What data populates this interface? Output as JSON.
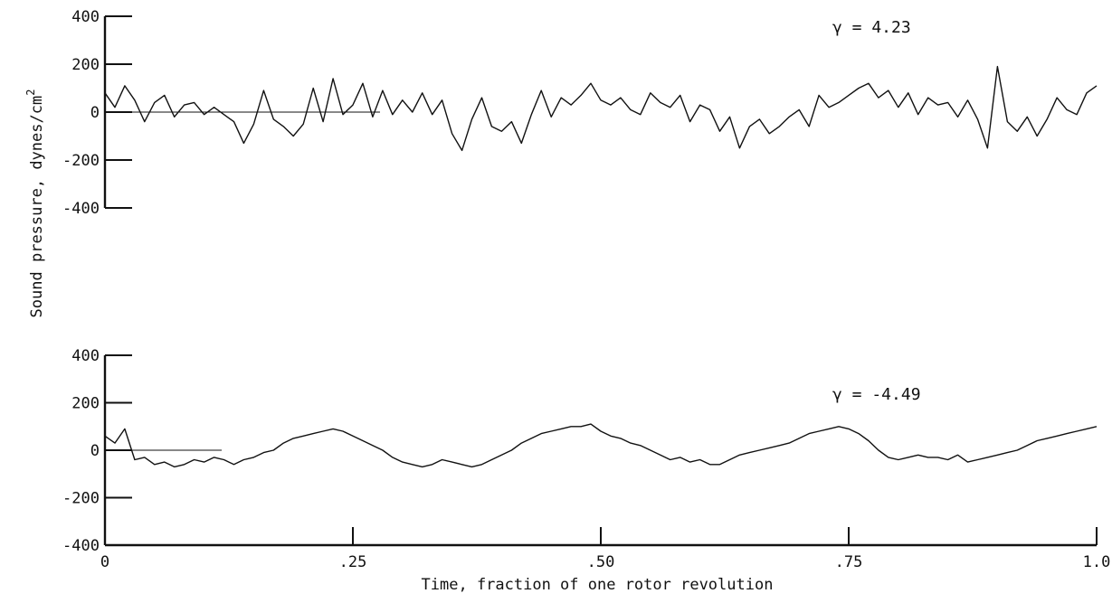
{
  "chart_data": {
    "type": "line",
    "ylabel": "Sound pressure, dynes/cm",
    "ylabel_superscript": "2",
    "xlabel": "Time, fraction of one rotor revolution",
    "x_ticks": [
      {
        "value": 0,
        "label": "0"
      },
      {
        "value": 0.25,
        "label": ".25"
      },
      {
        "value": 0.5,
        "label": ".50"
      },
      {
        "value": 0.75,
        "label": ".75"
      },
      {
        "value": 1.0,
        "label": "1.0"
      }
    ],
    "xlim": [
      0,
      1.0
    ],
    "panels": [
      {
        "id": "top",
        "ylim": [
          -400,
          400
        ],
        "y_ticks": [
          {
            "value": 400,
            "label": "400"
          },
          {
            "value": 200,
            "label": "200"
          },
          {
            "value": 0,
            "label": "0"
          },
          {
            "value": -200,
            "label": "-200"
          },
          {
            "value": -400,
            "label": "-400"
          }
        ],
        "annotation": "γ = 4.23",
        "series": [
          {
            "x": [
              0,
              0.01,
              0.02,
              0.03,
              0.04,
              0.05,
              0.06,
              0.07,
              0.08,
              0.09,
              0.1,
              0.11,
              0.12,
              0.13,
              0.14,
              0.15,
              0.16,
              0.17,
              0.18,
              0.19,
              0.2,
              0.21,
              0.22,
              0.23,
              0.24,
              0.25,
              0.26,
              0.27,
              0.28,
              0.29,
              0.3,
              0.31,
              0.32,
              0.33,
              0.34,
              0.35,
              0.36,
              0.37,
              0.38,
              0.39,
              0.4,
              0.41,
              0.42,
              0.43,
              0.44,
              0.45,
              0.46,
              0.47,
              0.48,
              0.49,
              0.5,
              0.51,
              0.52,
              0.53,
              0.54,
              0.55,
              0.56,
              0.57,
              0.58,
              0.59,
              0.6,
              0.61,
              0.62,
              0.63,
              0.64,
              0.65,
              0.66,
              0.67,
              0.68,
              0.69,
              0.7,
              0.71,
              0.72,
              0.73,
              0.74,
              0.75,
              0.76,
              0.77,
              0.78,
              0.79,
              0.8,
              0.81,
              0.82,
              0.83,
              0.84,
              0.85,
              0.86,
              0.87,
              0.88,
              0.89,
              0.9,
              0.91,
              0.92,
              0.93,
              0.94,
              0.95,
              0.96,
              0.97,
              0.98,
              0.99,
              1.0
            ],
            "y": [
              80,
              20,
              110,
              50,
              -40,
              40,
              70,
              -20,
              30,
              40,
              -10,
              20,
              -10,
              -40,
              -130,
              -50,
              90,
              -30,
              -60,
              -100,
              -50,
              100,
              -40,
              140,
              -10,
              30,
              120,
              -20,
              90,
              -10,
              50,
              0,
              80,
              -10,
              50,
              -90,
              -160,
              -30,
              60,
              -60,
              -80,
              -40,
              -130,
              -10,
              90,
              -20,
              60,
              30,
              70,
              120,
              50,
              30,
              60,
              10,
              -10,
              80,
              40,
              20,
              70,
              -40,
              30,
              10,
              -80,
              -20,
              -150,
              -60,
              -30,
              -90,
              -60,
              -20,
              10,
              -60,
              70,
              20,
              40,
              70,
              100,
              120,
              60,
              90,
              20,
              80,
              -10,
              60,
              30,
              40,
              -20,
              50,
              -30,
              -150,
              190,
              -40,
              -80,
              -20,
              -100,
              -30,
              60,
              10,
              -10,
              80,
              110
            ]
          }
        ]
      },
      {
        "id": "bottom",
        "ylim": [
          -400,
          400
        ],
        "y_ticks": [
          {
            "value": 400,
            "label": "400"
          },
          {
            "value": 200,
            "label": "200"
          },
          {
            "value": 0,
            "label": "0"
          },
          {
            "value": -200,
            "label": "-200"
          },
          {
            "value": -400,
            "label": "-400"
          }
        ],
        "annotation": "γ = -4.49",
        "series": [
          {
            "x": [
              0,
              0.01,
              0.02,
              0.03,
              0.04,
              0.05,
              0.06,
              0.07,
              0.08,
              0.09,
              0.1,
              0.11,
              0.12,
              0.13,
              0.14,
              0.15,
              0.16,
              0.17,
              0.18,
              0.19,
              0.2,
              0.21,
              0.22,
              0.23,
              0.24,
              0.25,
              0.26,
              0.27,
              0.28,
              0.29,
              0.3,
              0.31,
              0.32,
              0.33,
              0.34,
              0.35,
              0.36,
              0.37,
              0.38,
              0.39,
              0.4,
              0.41,
              0.42,
              0.43,
              0.44,
              0.45,
              0.46,
              0.47,
              0.48,
              0.49,
              0.5,
              0.51,
              0.52,
              0.53,
              0.54,
              0.55,
              0.56,
              0.57,
              0.58,
              0.59,
              0.6,
              0.61,
              0.62,
              0.63,
              0.64,
              0.65,
              0.66,
              0.67,
              0.68,
              0.69,
              0.7,
              0.71,
              0.72,
              0.73,
              0.74,
              0.75,
              0.76,
              0.77,
              0.78,
              0.79,
              0.8,
              0.81,
              0.82,
              0.83,
              0.84,
              0.85,
              0.86,
              0.87,
              0.88,
              0.89,
              0.9,
              0.91,
              0.92,
              0.93,
              0.94,
              0.95,
              0.96,
              0.97,
              0.98,
              0.99,
              1.0
            ],
            "y": [
              60,
              30,
              90,
              -40,
              -30,
              -60,
              -50,
              -70,
              -60,
              -40,
              -50,
              -30,
              -40,
              -60,
              -40,
              -30,
              -10,
              0,
              30,
              50,
              60,
              70,
              80,
              90,
              80,
              60,
              40,
              20,
              0,
              -30,
              -50,
              -60,
              -70,
              -60,
              -40,
              -50,
              -60,
              -70,
              -60,
              -40,
              -20,
              0,
              30,
              50,
              70,
              80,
              90,
              100,
              100,
              110,
              80,
              60,
              50,
              30,
              20,
              0,
              -20,
              -40,
              -30,
              -50,
              -40,
              -60,
              -60,
              -40,
              -20,
              -10,
              0,
              10,
              20,
              30,
              50,
              70,
              80,
              90,
              100,
              90,
              70,
              40,
              0,
              -30,
              -40,
              -30,
              -20,
              -30,
              -30,
              -40,
              -20,
              -50,
              -40,
              -30,
              -20,
              -10,
              0,
              20,
              40,
              50,
              60,
              70,
              80,
              90,
              100
            ]
          }
        ]
      }
    ]
  }
}
